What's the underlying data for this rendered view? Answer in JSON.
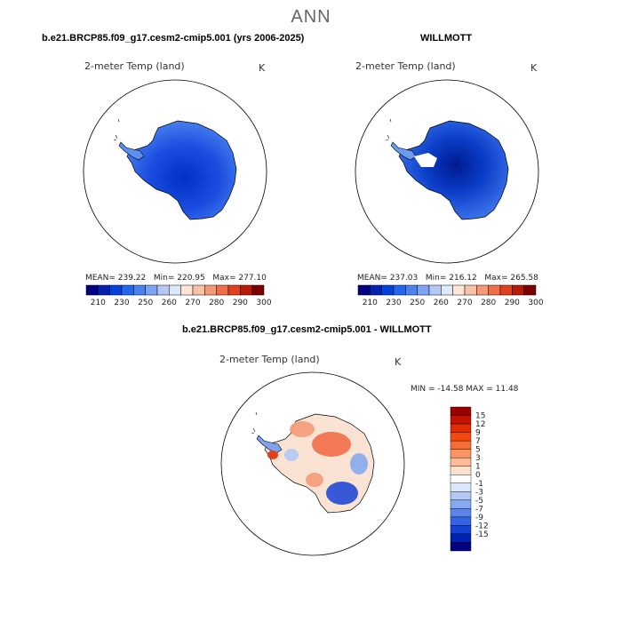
{
  "page": {
    "title": "ANN"
  },
  "panels": [
    {
      "header": "b.e21.BRCP85.f09_g17.cesm2-cmip5.001 (yrs 2006-2025)",
      "variable": "2-meter Temp (land)",
      "units": "K",
      "stats": {
        "mean_label": "MEAN=",
        "mean": "239.22",
        "min_label": "Min=",
        "min": "220.95",
        "max_label": "Max=",
        "max": "277.10"
      },
      "colorbar_labels": [
        "210",
        "230",
        "250",
        "260",
        "270",
        "280",
        "290",
        "300"
      ]
    },
    {
      "header": "WILLMOTT",
      "variable": "2-meter Temp (land)",
      "units": "K",
      "stats": {
        "mean_label": "MEAN=",
        "mean": "237.03",
        "min_label": "Min=",
        "min": "216.12",
        "max_label": "Max=",
        "max": "265.58"
      },
      "colorbar_labels": [
        "210",
        "230",
        "250",
        "260",
        "270",
        "280",
        "290",
        "300"
      ]
    },
    {
      "header": "b.e21.BRCP85.f09_g17.cesm2-cmip5.001 - WILLMOTT",
      "variable": "2-meter Temp (land)",
      "units": "K",
      "stats_line": "MIN = -14.58 MAX =  11.48",
      "colorbar_labels": [
        "15",
        "12",
        "9",
        "7",
        "5",
        "3",
        "1",
        "0",
        "-1",
        "-3",
        "-5",
        "-7",
        "-9",
        "-12",
        "-15"
      ]
    }
  ],
  "colors": {
    "abs_scale": [
      "#000080",
      "#0022b0",
      "#0044dd",
      "#2266ee",
      "#4a82f0",
      "#7ea3f3",
      "#b3c8f7",
      "#dde8fb",
      "#fde6d6",
      "#f9c2a6",
      "#f59a77",
      "#ef6d48",
      "#e0401e",
      "#b81a0a",
      "#7a0000"
    ],
    "diff_scale": [
      "#9b0000",
      "#c41200",
      "#e12e00",
      "#f24a0f",
      "#f86c34",
      "#fb9463",
      "#fcbc98",
      "#fde0cc",
      "#ffffff",
      "#dae6fb",
      "#b2c9f6",
      "#86a8f1",
      "#5b85ec",
      "#3363e6",
      "#1540d6",
      "#0022b0",
      "#000080"
    ]
  }
}
